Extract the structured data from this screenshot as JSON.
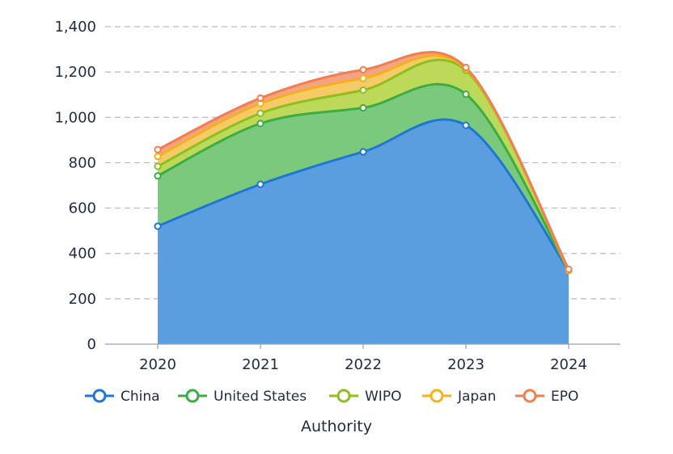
{
  "chart_data": {
    "type": "area",
    "stacked": true,
    "smooth": true,
    "categories": [
      "2020",
      "2021",
      "2022",
      "2023",
      "2024"
    ],
    "series": [
      {
        "name": "China",
        "values": [
          520,
          705,
          848,
          965,
          325
        ],
        "color": "#1f77d4",
        "fill": "#5b9ee0"
      },
      {
        "name": "United States",
        "values": [
          222,
          268,
          194,
          137,
          0
        ],
        "color": "#3cad43",
        "fill": "#7bc97c"
      },
      {
        "name": "WIPO",
        "values": [
          42,
          45,
          78,
          105,
          0
        ],
        "color": "#8dbf1e",
        "fill": "#bcd95a"
      },
      {
        "name": "Japan",
        "values": [
          44,
          43,
          52,
          8,
          0
        ],
        "color": "#f2b21b",
        "fill": "#f6ca66"
      },
      {
        "name": "EPO",
        "values": [
          30,
          24,
          38,
          5,
          5
        ],
        "color": "#f47d4f",
        "fill": "#f6a383"
      }
    ],
    "yticks": [
      "0",
      "200",
      "400",
      "600",
      "800",
      "1,000",
      "1,200",
      "1,400"
    ],
    "ylim": [
      0,
      1400
    ],
    "xlabel": "Authority",
    "ylabel": "",
    "grid": true,
    "legend_position": "bottom"
  }
}
